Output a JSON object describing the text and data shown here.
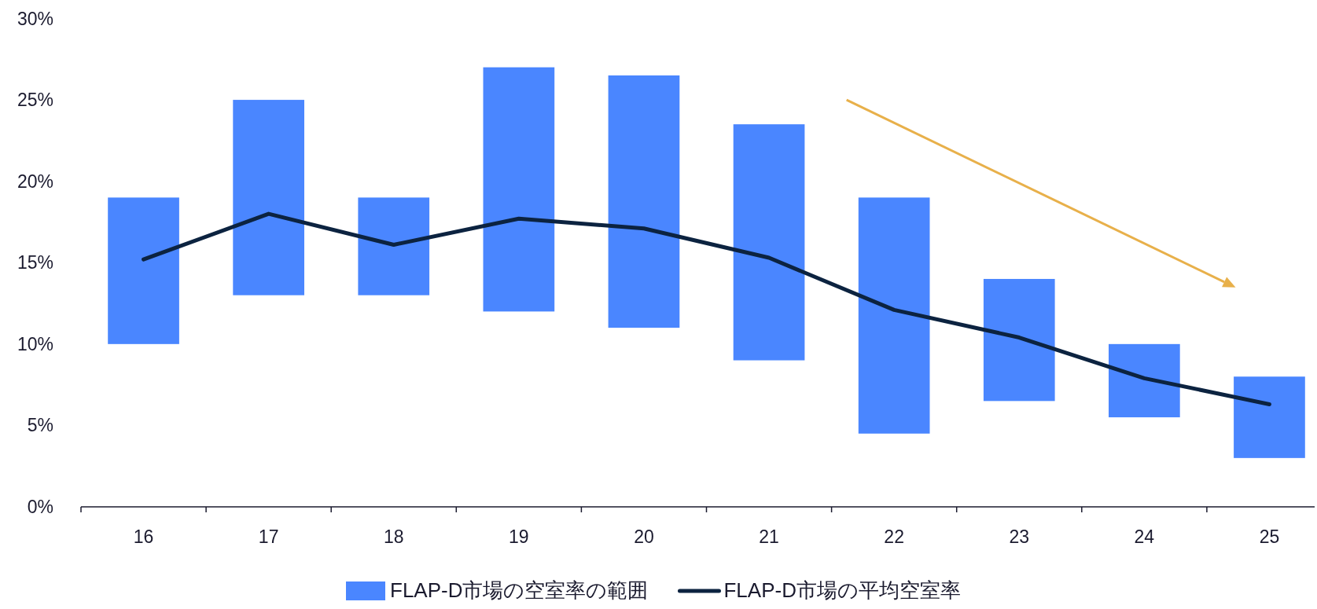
{
  "chart_data": {
    "type": "bar",
    "categories": [
      "16",
      "17",
      "18",
      "19",
      "20",
      "21",
      "22",
      "23",
      "24",
      "25"
    ],
    "series": [
      {
        "name": "FLAP-D市場の空室率の範囲",
        "color": "#4a86ff",
        "base": [
          10,
          13,
          13,
          12,
          11,
          9,
          4.5,
          6.5,
          5.5,
          3
        ],
        "values": [
          9,
          12,
          6,
          15,
          15.5,
          14.5,
          14.5,
          7.5,
          4.5,
          5
        ]
      },
      {
        "name": "FLAP-D市場の平均空室率",
        "type": "line",
        "color": "#0c2340",
        "values": [
          15.2,
          18.0,
          16.1,
          17.7,
          17.1,
          15.3,
          12.1,
          10.4,
          7.9,
          6.3
        ]
      }
    ],
    "ylim": [
      0,
      30
    ],
    "yticks": [
      {
        "value": 0,
        "label": "0%"
      },
      {
        "value": 5,
        "label": "5%"
      },
      {
        "value": 10,
        "label": "10%"
      },
      {
        "value": 15,
        "label": "15%"
      },
      {
        "value": 20,
        "label": "20%"
      },
      {
        "value": 25,
        "label": "25%"
      },
      {
        "value": 30,
        "label": "30%"
      }
    ],
    "grid": false,
    "legend": "bottom"
  }
}
